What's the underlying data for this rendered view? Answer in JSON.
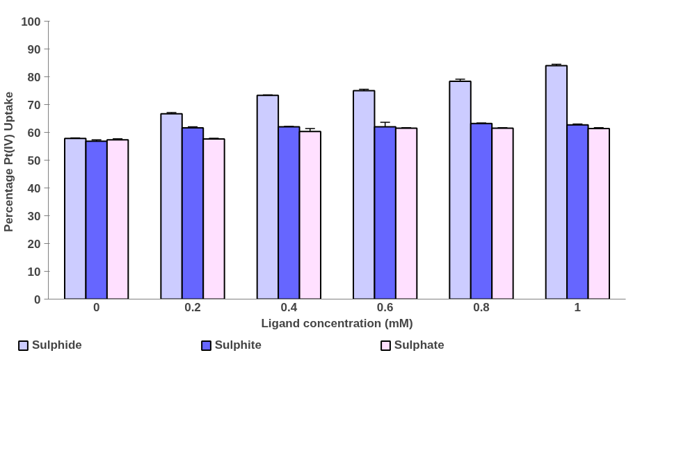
{
  "chart_data": {
    "type": "bar",
    "xlabel": "Ligand concentration (mM)",
    "ylabel": "Percentage  Pt(IV) Uptake",
    "categories": [
      "0",
      "0.2",
      "0.4",
      "0.6",
      "0.8",
      "1"
    ],
    "series": [
      {
        "name": "Sulphide",
        "color": "#ccccff",
        "values": [
          57.8,
          66.7,
          73.3,
          75.0,
          78.4,
          84.0
        ],
        "errors": [
          0.2,
          0.4,
          0.2,
          0.5,
          0.7,
          0.5
        ]
      },
      {
        "name": "Sulphite",
        "color": "#6666ff",
        "values": [
          56.8,
          61.6,
          62.0,
          62.0,
          63.2,
          62.7
        ],
        "errors": [
          0.5,
          0.4,
          0.2,
          1.6,
          0.2,
          0.3
        ]
      },
      {
        "name": "Sulphate",
        "color": "#ffe0ff",
        "values": [
          57.3,
          57.6,
          60.3,
          61.5,
          61.5,
          61.4
        ],
        "errors": [
          0.4,
          0.3,
          1.1,
          0.2,
          0.2,
          0.3
        ]
      }
    ],
    "ylim": [
      0,
      100
    ],
    "yticks": [
      0,
      10,
      20,
      30,
      40,
      50,
      60,
      70,
      80,
      90,
      100
    ],
    "grid": false,
    "legend": "bottom"
  }
}
